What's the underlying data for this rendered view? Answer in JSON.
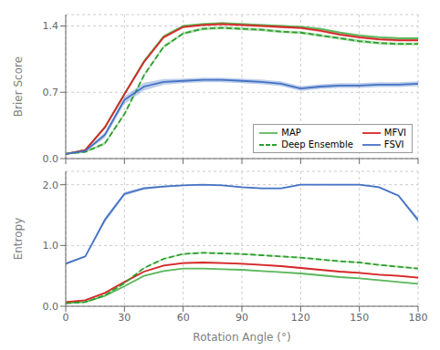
{
  "chart_data": [
    {
      "type": "line",
      "y_label": "Brier Score",
      "x": [
        0,
        10,
        20,
        30,
        40,
        50,
        60,
        70,
        80,
        90,
        100,
        110,
        120,
        130,
        140,
        150,
        160,
        170,
        180
      ],
      "xlim": [
        0,
        180
      ],
      "xticks": [
        0,
        30,
        60,
        90,
        120,
        150,
        180
      ],
      "ylim": [
        0.0,
        1.52
      ],
      "yticks": [
        {
          "value": 0.0,
          "label": "0.0"
        },
        0.7,
        1.4
      ],
      "grid": true,
      "legend": "lower right",
      "tick_labels": "y",
      "series": [
        {
          "name": "MAP",
          "color": "#5cb85c",
          "line_style": "solid",
          "values": [
            0.05,
            0.09,
            0.33,
            0.68,
            1.03,
            1.29,
            1.4,
            1.42,
            1.43,
            1.42,
            1.41,
            1.4,
            1.39,
            1.37,
            1.33,
            1.3,
            1.28,
            1.27,
            1.27
          ],
          "std": [
            0.005,
            0.01,
            0.015,
            0.015,
            0.015,
            0.015,
            0.012,
            0.012,
            0.012,
            0.012,
            0.012,
            0.012,
            0.012,
            0.012,
            0.012,
            0.012,
            0.012,
            0.012,
            0.012
          ]
        },
        {
          "name": "MFVI",
          "color": "#d62728",
          "line_style": "solid",
          "values": [
            0.05,
            0.09,
            0.33,
            0.68,
            1.02,
            1.28,
            1.39,
            1.41,
            1.42,
            1.41,
            1.4,
            1.39,
            1.38,
            1.35,
            1.31,
            1.28,
            1.26,
            1.25,
            1.25
          ],
          "std": [
            0.005,
            0.01,
            0.015,
            0.015,
            0.015,
            0.015,
            0.015,
            0.015,
            0.015,
            0.015,
            0.015,
            0.015,
            0.015,
            0.015,
            0.015,
            0.015,
            0.015,
            0.015,
            0.015
          ]
        },
        {
          "name": "Deep Ensemble",
          "color": "#2ca02c",
          "line_style": "dashed",
          "values": [
            0.05,
            0.07,
            0.16,
            0.47,
            0.88,
            1.18,
            1.32,
            1.37,
            1.38,
            1.37,
            1.36,
            1.34,
            1.33,
            1.3,
            1.27,
            1.24,
            1.22,
            1.21,
            1.21
          ],
          "std": [
            0.005,
            0.01,
            0.015,
            0.015,
            0.015,
            0.015,
            0.015,
            0.015,
            0.015,
            0.015,
            0.015,
            0.015,
            0.015,
            0.015,
            0.015,
            0.015,
            0.015,
            0.015,
            0.015
          ]
        },
        {
          "name": "FSVI",
          "color": "#4472c4",
          "line_style": "solid",
          "values": [
            0.05,
            0.08,
            0.25,
            0.62,
            0.76,
            0.81,
            0.82,
            0.83,
            0.83,
            0.82,
            0.81,
            0.79,
            0.74,
            0.76,
            0.77,
            0.77,
            0.78,
            0.78,
            0.79
          ],
          "std": [
            0.005,
            0.01,
            0.03,
            0.04,
            0.04,
            0.03,
            0.025,
            0.025,
            0.025,
            0.025,
            0.025,
            0.025,
            0.025,
            0.025,
            0.025,
            0.025,
            0.025,
            0.025,
            0.025
          ]
        }
      ]
    },
    {
      "type": "line",
      "x_label": "Rotation Angle (°)",
      "y_label": "Entropy",
      "x": [
        0,
        10,
        20,
        30,
        40,
        50,
        60,
        70,
        80,
        90,
        100,
        110,
        120,
        130,
        140,
        150,
        160,
        170,
        180
      ],
      "xlim": [
        0,
        180
      ],
      "xticks": [
        0,
        30,
        60,
        90,
        120,
        150,
        180
      ],
      "ylim": [
        0.0,
        2.22
      ],
      "yticks": [
        {
          "value": 0.0,
          "label": "0.0"
        },
        {
          "value": 1.0,
          "label": "1.0"
        },
        {
          "value": 2.0,
          "label": "2.0"
        }
      ],
      "grid": true,
      "series": [
        {
          "name": "MAP",
          "color": "#5cb85c",
          "line_style": "solid",
          "values": [
            0.05,
            0.07,
            0.17,
            0.33,
            0.5,
            0.58,
            0.62,
            0.62,
            0.61,
            0.6,
            0.58,
            0.56,
            0.54,
            0.51,
            0.48,
            0.46,
            0.43,
            0.4,
            0.37
          ],
          "std": [
            0.004,
            0.006,
            0.01,
            0.01,
            0.01,
            0.01,
            0.01,
            0.01,
            0.01,
            0.01,
            0.01,
            0.01,
            0.01,
            0.01,
            0.01,
            0.01,
            0.01,
            0.01,
            0.01
          ]
        },
        {
          "name": "MFVI",
          "color": "#d62728",
          "line_style": "solid",
          "values": [
            0.07,
            0.1,
            0.22,
            0.4,
            0.57,
            0.67,
            0.71,
            0.72,
            0.71,
            0.7,
            0.68,
            0.66,
            0.63,
            0.6,
            0.57,
            0.55,
            0.52,
            0.5,
            0.47
          ],
          "std": [
            0.005,
            0.008,
            0.012,
            0.012,
            0.012,
            0.012,
            0.012,
            0.012,
            0.012,
            0.012,
            0.012,
            0.012,
            0.012,
            0.012,
            0.012,
            0.012,
            0.012,
            0.012,
            0.012
          ]
        },
        {
          "name": "Deep Ensemble",
          "color": "#2ca02c",
          "line_style": "dashed",
          "values": [
            0.05,
            0.07,
            0.18,
            0.38,
            0.63,
            0.78,
            0.86,
            0.88,
            0.87,
            0.86,
            0.84,
            0.82,
            0.8,
            0.77,
            0.74,
            0.72,
            0.68,
            0.65,
            0.62
          ],
          "std": [
            0.005,
            0.008,
            0.012,
            0.012,
            0.012,
            0.012,
            0.012,
            0.012,
            0.012,
            0.012,
            0.012,
            0.012,
            0.012,
            0.012,
            0.012,
            0.012,
            0.012,
            0.012,
            0.012
          ]
        },
        {
          "name": "FSVI",
          "color": "#4472c4",
          "line_style": "solid",
          "values": [
            0.7,
            0.82,
            1.42,
            1.85,
            1.94,
            1.97,
            1.99,
            2.0,
            1.99,
            1.96,
            1.94,
            1.94,
            2.0,
            2.0,
            2.0,
            2.0,
            1.96,
            1.82,
            1.42
          ],
          "std": [
            0.015,
            0.015,
            0.04,
            0.03,
            0.02,
            0.015,
            0.01,
            0.01,
            0.01,
            0.01,
            0.01,
            0.01,
            0.01,
            0.01,
            0.01,
            0.01,
            0.01,
            0.015,
            0.04
          ]
        }
      ]
    }
  ]
}
